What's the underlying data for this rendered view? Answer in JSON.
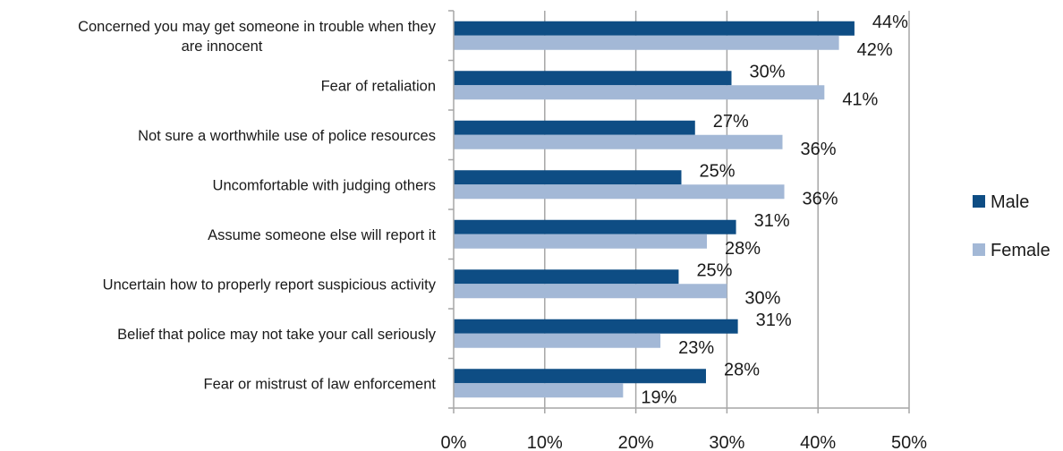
{
  "chart_data": {
    "type": "bar",
    "orientation": "horizontal",
    "categories": [
      [
        "Concerned you may get someone in trouble when they",
        "are innocent"
      ],
      [
        "Fear of retaliation"
      ],
      [
        "Not sure a worthwhile use of police resources"
      ],
      [
        "Uncomfortable with judging others"
      ],
      [
        "Assume someone else will report it"
      ],
      [
        "Uncertain how to properly report suspicious activity"
      ],
      [
        "Belief that police may not take your call seriously"
      ],
      [
        "Fear or mistrust of law enforcement"
      ]
    ],
    "series": [
      {
        "name": "Male",
        "color": "#0e4d84",
        "values": [
          44,
          30.5,
          26.5,
          25,
          31,
          24.7,
          31.2,
          27.7
        ],
        "labels": [
          "44%",
          "30%",
          "27%",
          "25%",
          "31%",
          "25%",
          "31%",
          "28%"
        ]
      },
      {
        "name": "Female",
        "color": "#a3b8d6",
        "values": [
          42.3,
          40.7,
          36.1,
          36.3,
          27.8,
          30,
          22.7,
          18.6
        ],
        "labels": [
          "42%",
          "41%",
          "36%",
          "36%",
          "28%",
          "30%",
          "23%",
          "19%"
        ]
      }
    ],
    "xlim": [
      0,
      50
    ],
    "ticks": [
      0,
      10,
      20,
      30,
      40,
      50
    ],
    "tick_labels": [
      "0%",
      "10%",
      "20%",
      "30%",
      "40%",
      "50%"
    ],
    "gridlines": true,
    "legend_position": "right",
    "title": "",
    "xlabel": "",
    "ylabel": ""
  }
}
